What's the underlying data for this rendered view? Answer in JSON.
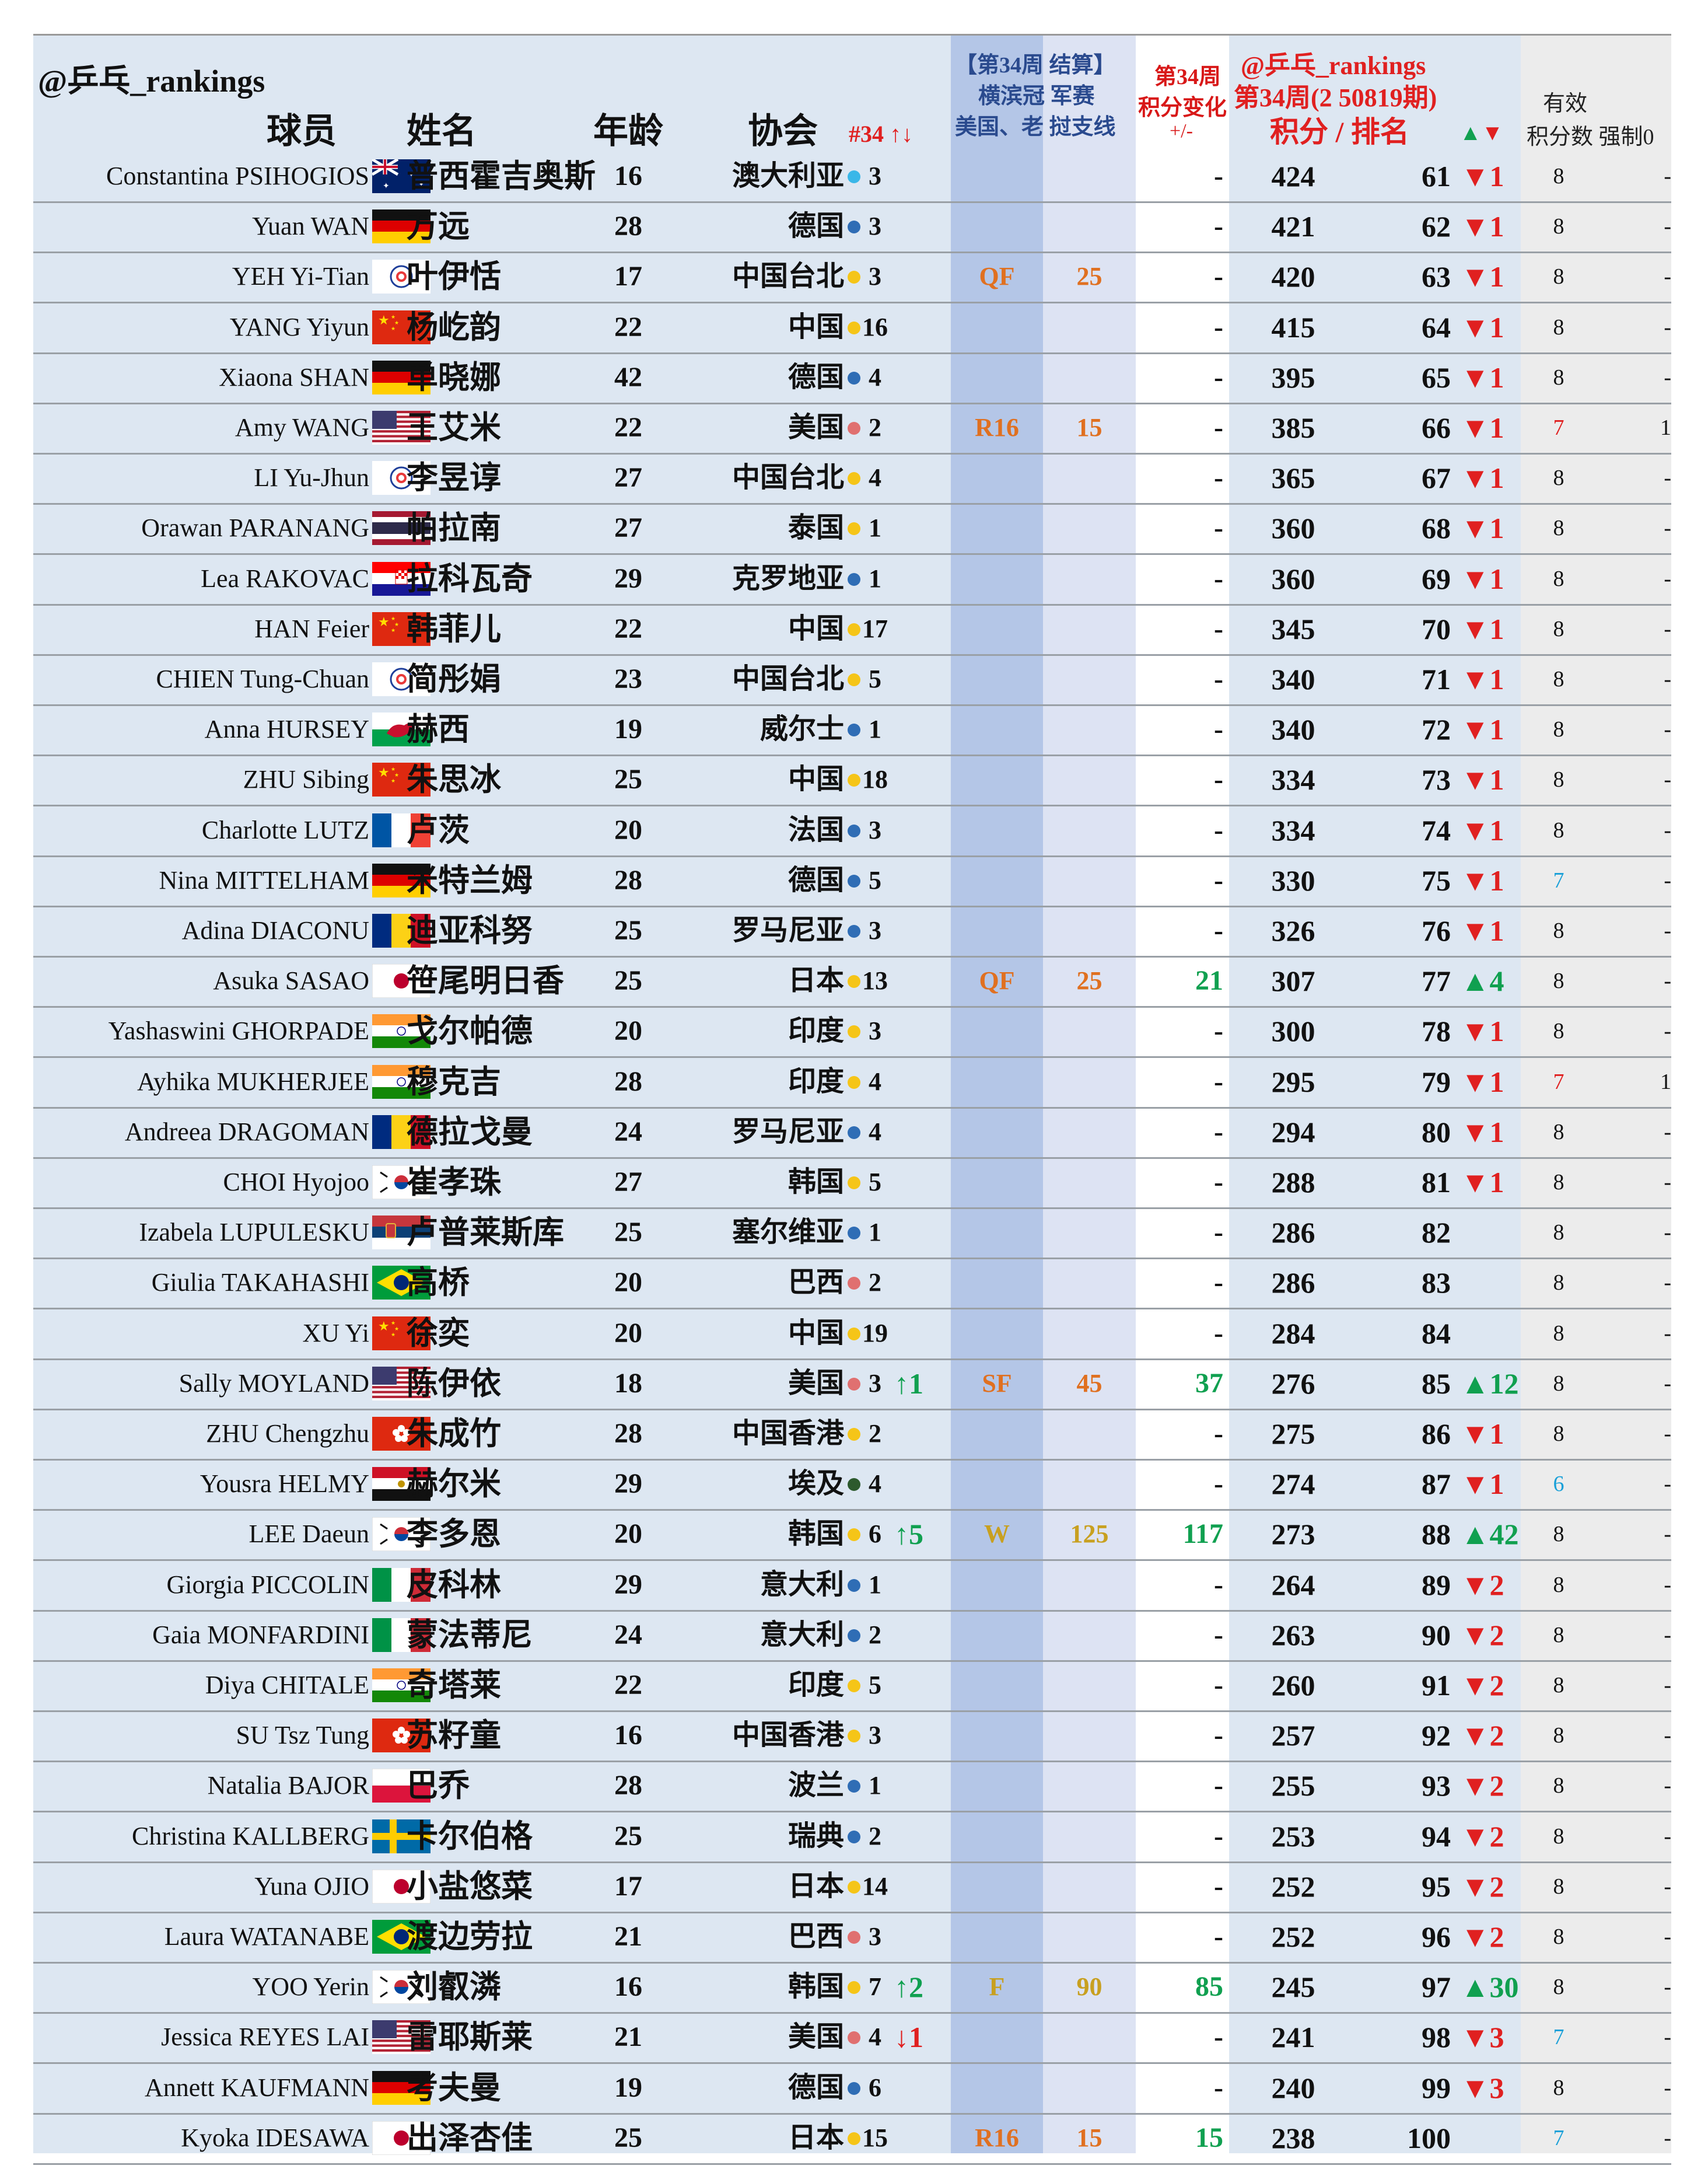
{
  "header": {
    "brand": "@乒乓_rankings",
    "player": "球员",
    "name": "姓名",
    "age": "年龄",
    "association": "协会",
    "assoc_rank": "#34 ↑↓",
    "event_line1": "【第34周 结算】",
    "event_line2": "横滨冠 军赛",
    "event_line3": "美国、老 挝支线",
    "change_line1": "第34周",
    "change_line2": "积分变化",
    "change_line3": "+/-",
    "rank_line1": "@乒乓_rankings",
    "rank_line2": "第34周(2 50819期)",
    "rank_line3": "积分 / 排名",
    "rank_arrows": "▲▼",
    "valid_line1": "有效",
    "valid_line2": "积分数 强制0"
  },
  "colors": {
    "up": "#10a050",
    "down": "#e02020",
    "round_orange": "#e07020",
    "round_gold": "#c8a020",
    "dot_yellow": "#f5c518",
    "dot_blue": "#2f6db5",
    "dot_red": "#e07070",
    "dot_cyan": "#3ab7e8",
    "dot_green": "#2d5a2d"
  },
  "rows": [
    {
      "en": "Constantina PSIHOGIOS",
      "flag": "australia",
      "cn": "普西霍吉奥斯",
      "age": "16",
      "assoc": "澳大利亚",
      "dot": "cyan",
      "arank": "3",
      "achg": "",
      "round": "",
      "pts": "",
      "delta": "-",
      "total": "424",
      "rank": "61",
      "rchg": "▼1",
      "valid": "8",
      "forced": "-"
    },
    {
      "en": "Yuan WAN",
      "flag": "germany",
      "cn": "万远",
      "age": "28",
      "assoc": "德国",
      "dot": "blue",
      "arank": "3",
      "achg": "",
      "round": "",
      "pts": "",
      "delta": "-",
      "total": "421",
      "rank": "62",
      "rchg": "▼1",
      "valid": "8",
      "forced": "-"
    },
    {
      "en": "YEH Yi-Tian",
      "flag": "tpe",
      "cn": "叶伊恬",
      "age": "17",
      "assoc": "中国台北",
      "dot": "yellow",
      "arank": "3",
      "achg": "",
      "round": "QF",
      "pts": "25",
      "delta": "-",
      "total": "420",
      "rank": "63",
      "rchg": "▼1",
      "valid": "8",
      "forced": "-"
    },
    {
      "en": "YANG Yiyun",
      "flag": "china",
      "cn": "杨屹韵",
      "age": "22",
      "assoc": "中国",
      "dot": "yellow",
      "arank": "16",
      "achg": "",
      "round": "",
      "pts": "",
      "delta": "-",
      "total": "415",
      "rank": "64",
      "rchg": "▼1",
      "valid": "8",
      "forced": "-"
    },
    {
      "en": "Xiaona SHAN",
      "flag": "germany",
      "cn": "单晓娜",
      "age": "42",
      "assoc": "德国",
      "dot": "blue",
      "arank": "4",
      "achg": "",
      "round": "",
      "pts": "",
      "delta": "-",
      "total": "395",
      "rank": "65",
      "rchg": "▼1",
      "valid": "8",
      "forced": "-"
    },
    {
      "en": "Amy WANG",
      "flag": "usa",
      "cn": "王艾米",
      "age": "22",
      "assoc": "美国",
      "dot": "red",
      "arank": "2",
      "achg": "",
      "round": "R16",
      "pts": "15",
      "delta": "-",
      "total": "385",
      "rank": "66",
      "rchg": "▼1",
      "valid": "7",
      "forced": "1"
    },
    {
      "en": "LI Yu-Jhun",
      "flag": "tpe",
      "cn": "李昱谆",
      "age": "27",
      "assoc": "中国台北",
      "dot": "yellow",
      "arank": "4",
      "achg": "",
      "round": "",
      "pts": "",
      "delta": "-",
      "total": "365",
      "rank": "67",
      "rchg": "▼1",
      "valid": "8",
      "forced": "-"
    },
    {
      "en": "Orawan PARANANG",
      "flag": "thailand",
      "cn": "帕拉南",
      "age": "27",
      "assoc": "泰国",
      "dot": "yellow",
      "arank": "1",
      "achg": "",
      "round": "",
      "pts": "",
      "delta": "-",
      "total": "360",
      "rank": "68",
      "rchg": "▼1",
      "valid": "8",
      "forced": "-"
    },
    {
      "en": "Lea RAKOVAC",
      "flag": "croatia",
      "cn": "拉科瓦奇",
      "age": "29",
      "assoc": "克罗地亚",
      "dot": "blue",
      "arank": "1",
      "achg": "",
      "round": "",
      "pts": "",
      "delta": "-",
      "total": "360",
      "rank": "69",
      "rchg": "▼1",
      "valid": "8",
      "forced": "-"
    },
    {
      "en": "HAN Feier",
      "flag": "china",
      "cn": "韩菲儿",
      "age": "22",
      "assoc": "中国",
      "dot": "yellow",
      "arank": "17",
      "achg": "",
      "round": "",
      "pts": "",
      "delta": "-",
      "total": "345",
      "rank": "70",
      "rchg": "▼1",
      "valid": "8",
      "forced": "-"
    },
    {
      "en": "CHIEN Tung-Chuan",
      "flag": "tpe",
      "cn": "简彤娟",
      "age": "23",
      "assoc": "中国台北",
      "dot": "yellow",
      "arank": "5",
      "achg": "",
      "round": "",
      "pts": "",
      "delta": "-",
      "total": "340",
      "rank": "71",
      "rchg": "▼1",
      "valid": "8",
      "forced": "-"
    },
    {
      "en": "Anna HURSEY",
      "flag": "wales",
      "cn": "赫西",
      "age": "19",
      "assoc": "威尔士",
      "dot": "blue",
      "arank": "1",
      "achg": "",
      "round": "",
      "pts": "",
      "delta": "-",
      "total": "340",
      "rank": "72",
      "rchg": "▼1",
      "valid": "8",
      "forced": "-"
    },
    {
      "en": "ZHU Sibing",
      "flag": "china",
      "cn": "朱思冰",
      "age": "25",
      "assoc": "中国",
      "dot": "yellow",
      "arank": "18",
      "achg": "",
      "round": "",
      "pts": "",
      "delta": "-",
      "total": "334",
      "rank": "73",
      "rchg": "▼1",
      "valid": "8",
      "forced": "-"
    },
    {
      "en": "Charlotte LUTZ",
      "flag": "france",
      "cn": "卢茨",
      "age": "20",
      "assoc": "法国",
      "dot": "blue",
      "arank": "3",
      "achg": "",
      "round": "",
      "pts": "",
      "delta": "-",
      "total": "334",
      "rank": "74",
      "rchg": "▼1",
      "valid": "8",
      "forced": "-"
    },
    {
      "en": "Nina MITTELHAM",
      "flag": "germany",
      "cn": "米特兰姆",
      "age": "28",
      "assoc": "德国",
      "dot": "blue",
      "arank": "5",
      "achg": "",
      "round": "",
      "pts": "",
      "delta": "-",
      "total": "330",
      "rank": "75",
      "rchg": "▼1",
      "valid": "7",
      "forced": "-"
    },
    {
      "en": "Adina DIACONU",
      "flag": "romania",
      "cn": "迪亚科努",
      "age": "25",
      "assoc": "罗马尼亚",
      "dot": "blue",
      "arank": "3",
      "achg": "",
      "round": "",
      "pts": "",
      "delta": "-",
      "total": "326",
      "rank": "76",
      "rchg": "▼1",
      "valid": "8",
      "forced": "-"
    },
    {
      "en": "Asuka SASAO",
      "flag": "japan",
      "cn": "笹尾明日香",
      "age": "25",
      "assoc": "日本",
      "dot": "yellow",
      "arank": "13",
      "achg": "",
      "round": "QF",
      "pts": "25",
      "delta": "21",
      "total": "307",
      "rank": "77",
      "rchg": "▲4",
      "valid": "8",
      "forced": "-"
    },
    {
      "en": "Yashaswini GHORPADE",
      "flag": "india",
      "cn": "戈尔帕德",
      "age": "20",
      "assoc": "印度",
      "dot": "yellow",
      "arank": "3",
      "achg": "",
      "round": "",
      "pts": "",
      "delta": "-",
      "total": "300",
      "rank": "78",
      "rchg": "▼1",
      "valid": "8",
      "forced": "-"
    },
    {
      "en": "Ayhika MUKHERJEE",
      "flag": "india",
      "cn": "穆克吉",
      "age": "28",
      "assoc": "印度",
      "dot": "yellow",
      "arank": "4",
      "achg": "",
      "round": "",
      "pts": "",
      "delta": "-",
      "total": "295",
      "rank": "79",
      "rchg": "▼1",
      "valid": "7",
      "forced": "1"
    },
    {
      "en": "Andreea DRAGOMAN",
      "flag": "romania",
      "cn": "德拉戈曼",
      "age": "24",
      "assoc": "罗马尼亚",
      "dot": "blue",
      "arank": "4",
      "achg": "",
      "round": "",
      "pts": "",
      "delta": "-",
      "total": "294",
      "rank": "80",
      "rchg": "▼1",
      "valid": "8",
      "forced": "-"
    },
    {
      "en": "CHOI Hyojoo",
      "flag": "korea",
      "cn": "崔孝珠",
      "age": "27",
      "assoc": "韩国",
      "dot": "yellow",
      "arank": "5",
      "achg": "",
      "round": "",
      "pts": "",
      "delta": "-",
      "total": "288",
      "rank": "81",
      "rchg": "▼1",
      "valid": "8",
      "forced": "-"
    },
    {
      "en": "Izabela LUPULESKU",
      "flag": "serbia",
      "cn": "卢普莱斯库",
      "age": "25",
      "assoc": "塞尔维亚",
      "dot": "blue",
      "arank": "1",
      "achg": "",
      "round": "",
      "pts": "",
      "delta": "-",
      "total": "286",
      "rank": "82",
      "rchg": "",
      "valid": "8",
      "forced": "-"
    },
    {
      "en": "Giulia TAKAHASHI",
      "flag": "brazil",
      "cn": "高桥",
      "age": "20",
      "assoc": "巴西",
      "dot": "red",
      "arank": "2",
      "achg": "",
      "round": "",
      "pts": "",
      "delta": "-",
      "total": "286",
      "rank": "83",
      "rchg": "",
      "valid": "8",
      "forced": "-"
    },
    {
      "en": "XU Yi",
      "flag": "china",
      "cn": "徐奕",
      "age": "20",
      "assoc": "中国",
      "dot": "yellow",
      "arank": "19",
      "achg": "",
      "round": "",
      "pts": "",
      "delta": "-",
      "total": "284",
      "rank": "84",
      "rchg": "",
      "valid": "8",
      "forced": "-"
    },
    {
      "en": "Sally MOYLAND",
      "flag": "usa",
      "cn": "陈伊依",
      "age": "18",
      "assoc": "美国",
      "dot": "red",
      "arank": "3",
      "achg": "↑1",
      "round": "SF",
      "pts": "45",
      "delta": "37",
      "total": "276",
      "rank": "85",
      "rchg": "▲12",
      "valid": "8",
      "forced": "-"
    },
    {
      "en": "ZHU Chengzhu",
      "flag": "hongkong",
      "cn": "朱成竹",
      "age": "28",
      "assoc": "中国香港",
      "dot": "yellow",
      "arank": "2",
      "achg": "",
      "round": "",
      "pts": "",
      "delta": "-",
      "total": "275",
      "rank": "86",
      "rchg": "▼1",
      "valid": "8",
      "forced": "-"
    },
    {
      "en": "Yousra HELMY",
      "flag": "egypt",
      "cn": "赫尔米",
      "age": "29",
      "assoc": "埃及",
      "dot": "green",
      "arank": "4",
      "achg": "",
      "round": "",
      "pts": "",
      "delta": "-",
      "total": "274",
      "rank": "87",
      "rchg": "▼1",
      "valid": "6",
      "forced": "-"
    },
    {
      "en": "LEE Daeun",
      "flag": "korea",
      "cn": "李多恩",
      "age": "20",
      "assoc": "韩国",
      "dot": "yellow",
      "arank": "6",
      "achg": "↑5",
      "round": "W",
      "pts": "125",
      "delta": "117",
      "total": "273",
      "rank": "88",
      "rchg": "▲42",
      "valid": "8",
      "forced": "-"
    },
    {
      "en": "Giorgia PICCOLIN",
      "flag": "italy",
      "cn": "皮科林",
      "age": "29",
      "assoc": "意大利",
      "dot": "blue",
      "arank": "1",
      "achg": "",
      "round": "",
      "pts": "",
      "delta": "-",
      "total": "264",
      "rank": "89",
      "rchg": "▼2",
      "valid": "8",
      "forced": "-"
    },
    {
      "en": "Gaia MONFARDINI",
      "flag": "italy",
      "cn": "蒙法蒂尼",
      "age": "24",
      "assoc": "意大利",
      "dot": "blue",
      "arank": "2",
      "achg": "",
      "round": "",
      "pts": "",
      "delta": "-",
      "total": "263",
      "rank": "90",
      "rchg": "▼2",
      "valid": "8",
      "forced": "-"
    },
    {
      "en": "Diya CHITALE",
      "flag": "india",
      "cn": "奇塔莱",
      "age": "22",
      "assoc": "印度",
      "dot": "yellow",
      "arank": "5",
      "achg": "",
      "round": "",
      "pts": "",
      "delta": "-",
      "total": "260",
      "rank": "91",
      "rchg": "▼2",
      "valid": "8",
      "forced": "-"
    },
    {
      "en": "SU Tsz Tung",
      "flag": "hongkong",
      "cn": "苏籽童",
      "age": "16",
      "assoc": "中国香港",
      "dot": "yellow",
      "arank": "3",
      "achg": "",
      "round": "",
      "pts": "",
      "delta": "-",
      "total": "257",
      "rank": "92",
      "rchg": "▼2",
      "valid": "8",
      "forced": "-"
    },
    {
      "en": "Natalia BAJOR",
      "flag": "poland",
      "cn": "巴乔",
      "age": "28",
      "assoc": "波兰",
      "dot": "blue",
      "arank": "1",
      "achg": "",
      "round": "",
      "pts": "",
      "delta": "-",
      "total": "255",
      "rank": "93",
      "rchg": "▼2",
      "valid": "8",
      "forced": "-"
    },
    {
      "en": "Christina KALLBERG",
      "flag": "sweden",
      "cn": "卡尔伯格",
      "age": "25",
      "assoc": "瑞典",
      "dot": "blue",
      "arank": "2",
      "achg": "",
      "round": "",
      "pts": "",
      "delta": "-",
      "total": "253",
      "rank": "94",
      "rchg": "▼2",
      "valid": "8",
      "forced": "-"
    },
    {
      "en": "Yuna OJIO",
      "flag": "japan",
      "cn": "小盐悠菜",
      "age": "17",
      "assoc": "日本",
      "dot": "yellow",
      "arank": "14",
      "achg": "",
      "round": "",
      "pts": "",
      "delta": "-",
      "total": "252",
      "rank": "95",
      "rchg": "▼2",
      "valid": "8",
      "forced": "-"
    },
    {
      "en": "Laura WATANABE",
      "flag": "brazil",
      "cn": "渡边劳拉",
      "age": "21",
      "assoc": "巴西",
      "dot": "red",
      "arank": "3",
      "achg": "",
      "round": "",
      "pts": "",
      "delta": "-",
      "total": "252",
      "rank": "96",
      "rchg": "▼2",
      "valid": "8",
      "forced": "-"
    },
    {
      "en": "YOO Yerin",
      "flag": "korea",
      "cn": "刘叡潾",
      "age": "16",
      "assoc": "韩国",
      "dot": "yellow",
      "arank": "7",
      "achg": "↑2",
      "round": "F",
      "pts": "90",
      "delta": "85",
      "total": "245",
      "rank": "97",
      "rchg": "▲30",
      "valid": "8",
      "forced": "-"
    },
    {
      "en": "Jessica REYES LAI",
      "flag": "usa",
      "cn": "雷耶斯莱",
      "age": "21",
      "assoc": "美国",
      "dot": "red",
      "arank": "4",
      "achg": "↓1",
      "round": "",
      "pts": "",
      "delta": "-",
      "total": "241",
      "rank": "98",
      "rchg": "▼3",
      "valid": "7",
      "forced": "-"
    },
    {
      "en": "Annett KAUFMANN",
      "flag": "germany",
      "cn": "考夫曼",
      "age": "19",
      "assoc": "德国",
      "dot": "blue",
      "arank": "6",
      "achg": "",
      "round": "",
      "pts": "",
      "delta": "-",
      "total": "240",
      "rank": "99",
      "rchg": "▼3",
      "valid": "8",
      "forced": "-"
    },
    {
      "en": "Kyoka IDESAWA",
      "flag": "japan",
      "cn": "出泽杏佳",
      "age": "25",
      "assoc": "日本",
      "dot": "yellow",
      "arank": "15",
      "achg": "",
      "round": "R16",
      "pts": "15",
      "delta": "15",
      "total": "238",
      "rank": "100",
      "rchg": "",
      "valid": "7",
      "forced": "-"
    }
  ]
}
